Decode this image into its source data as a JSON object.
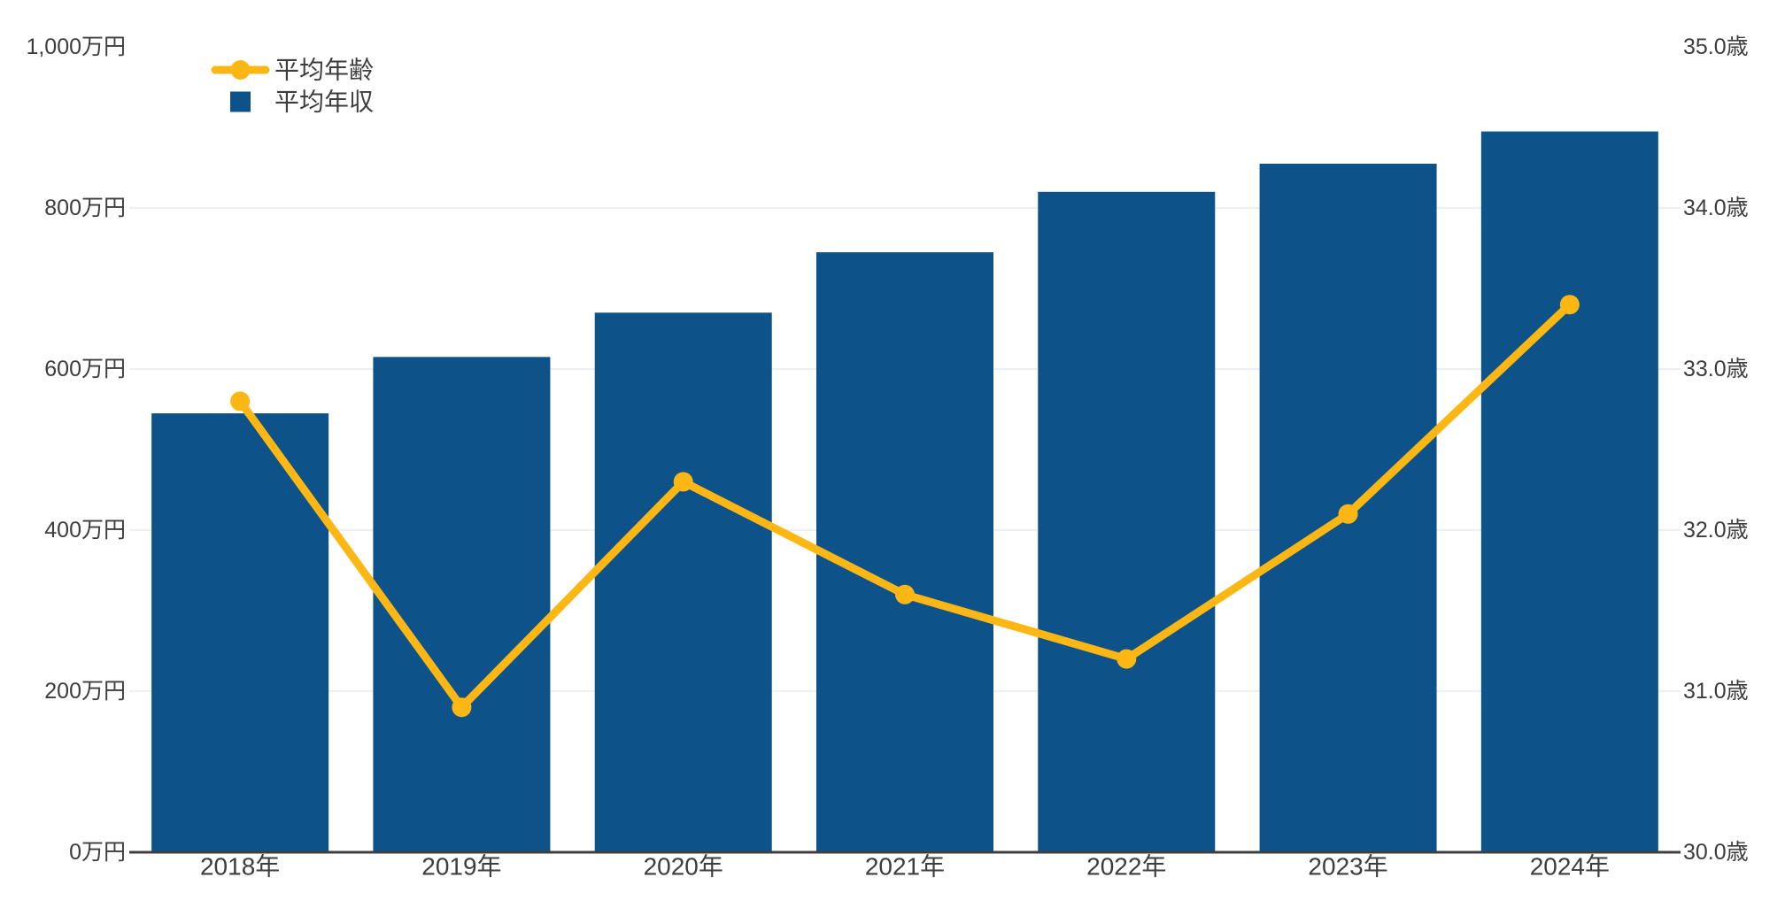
{
  "chart_data": {
    "type": "combo-bar-line",
    "title": "",
    "categories": [
      "2018年",
      "2019年",
      "2020年",
      "2021年",
      "2022年",
      "2023年",
      "2024年"
    ],
    "series": [
      {
        "name": "平均年齢",
        "type": "line",
        "axis": "right",
        "unit": "歳",
        "color": "#fcb714",
        "values": [
          32.8,
          30.9,
          32.3,
          31.6,
          31.2,
          32.1,
          33.4
        ]
      },
      {
        "name": "平均年収",
        "type": "bar",
        "axis": "left",
        "unit": "万円",
        "color": "#0d5389",
        "values": [
          545,
          615,
          670,
          745,
          820,
          855,
          895
        ]
      }
    ],
    "left_axis": {
      "min": 0,
      "max": 1000,
      "step": 200,
      "unit": "万円",
      "tick_labels": [
        "0万円",
        "200万円",
        "400万円",
        "600万円",
        "800万円",
        "1,000万円"
      ]
    },
    "right_axis": {
      "min": 30.0,
      "max": 35.0,
      "step": 1.0,
      "unit": "歳",
      "tick_labels": [
        "30.0歳",
        "31.0歳",
        "32.0歳",
        "33.0歳",
        "34.0歳",
        "35.0歳"
      ]
    },
    "legend": {
      "position": "top-left",
      "items": [
        {
          "label": "平均年齢",
          "marker": "line-dot",
          "color": "#fcb714"
        },
        {
          "label": "平均年収",
          "marker": "square",
          "color": "#0d5389"
        }
      ]
    },
    "grid": {
      "horizontal": true,
      "top_line": false
    }
  },
  "colors": {
    "bar": "#0d5389",
    "line": "#fcb714",
    "grid": "#edf0f2",
    "axis_line": "#3f3f3f",
    "text": "#3d3d3d",
    "background": "#ffffff"
  }
}
